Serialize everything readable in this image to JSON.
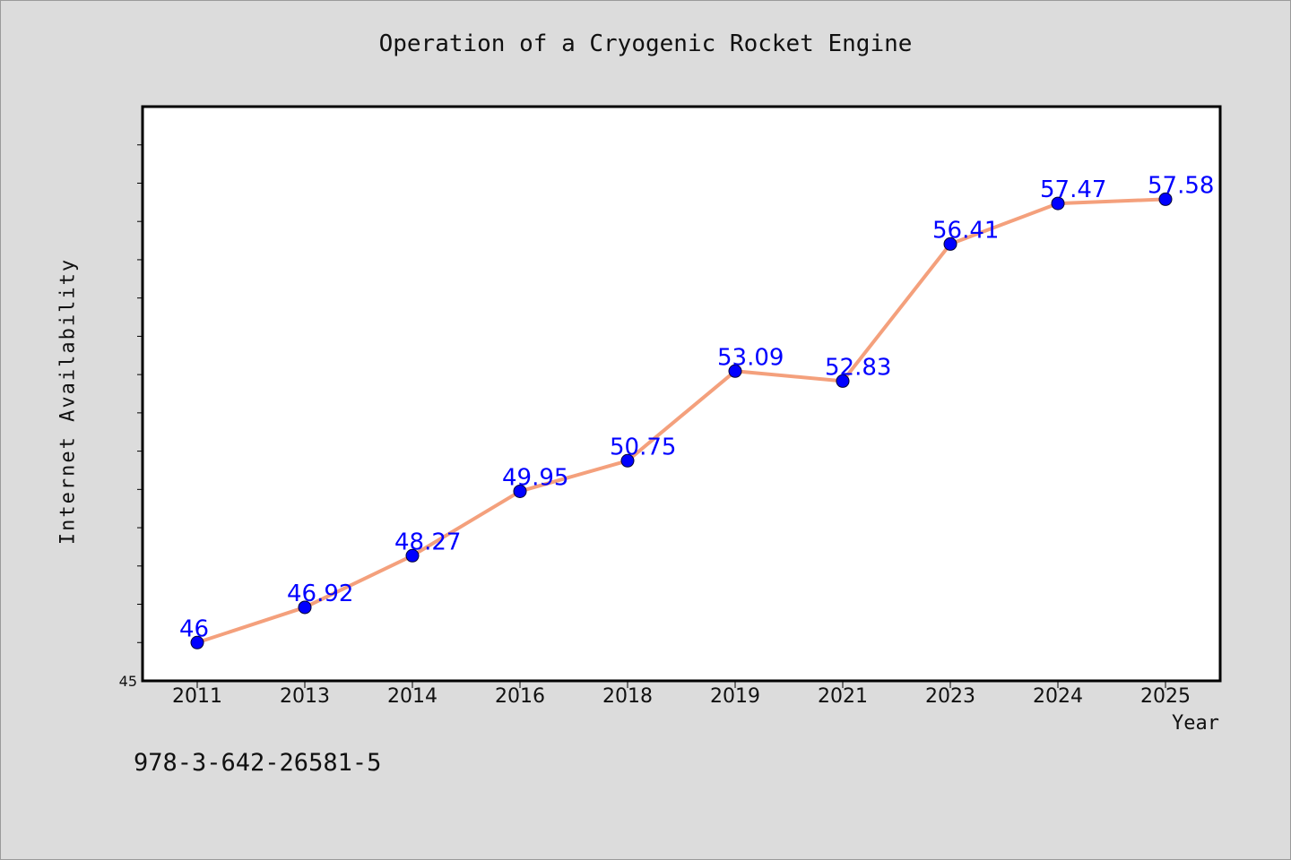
{
  "footer": {
    "code": "978-3-642-26581-5"
  },
  "chart_data": {
    "type": "line",
    "title": "Operation of a Cryogenic Rocket Engine",
    "xlabel": "Year",
    "ylabel": "Internet Availability",
    "categories": [
      "2011",
      "2013",
      "2014",
      "2016",
      "2018",
      "2019",
      "2021",
      "2023",
      "2024",
      "2025"
    ],
    "values": [
      46,
      46.92,
      48.27,
      49.95,
      50.75,
      53.09,
      52.83,
      56.41,
      57.47,
      57.58
    ],
    "data_labels": [
      "46",
      "46.92",
      "48.27",
      "49.95",
      "50.75",
      "53.09",
      "52.83",
      "56.41",
      "57.47",
      "57.58"
    ],
    "ylim": [
      45,
      60
    ],
    "y_tick_labels": [
      {
        "value": 45,
        "label": "45"
      }
    ],
    "y_minor_tick_step": 1,
    "grid": false,
    "legend": "none",
    "colors": {
      "line": "#f4a07c",
      "marker": "#0000ff",
      "data_label": "#0000ff",
      "background": "#dcdcdc",
      "plot_area": "#ffffff"
    }
  }
}
